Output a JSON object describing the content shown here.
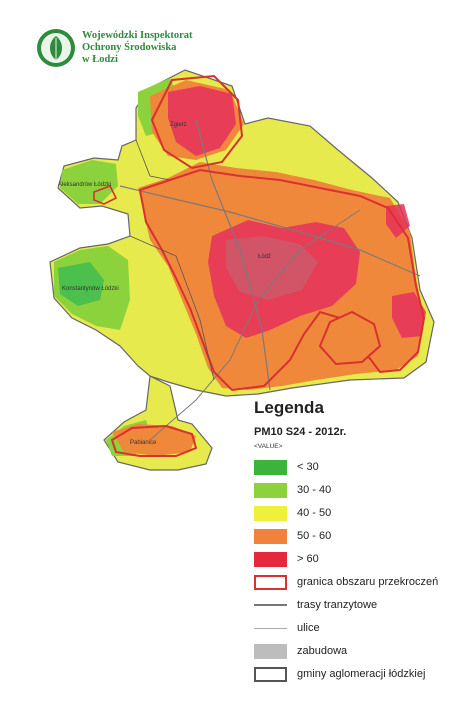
{
  "header": {
    "org_line1": "Wojewódzki Inspektorat",
    "org_line2": "Ochrony Środowiska",
    "org_line3": "w Łodzi"
  },
  "map": {
    "labels": {
      "zgierz": "Zgierz",
      "aleksandrow": "Aleksandrów Łódzki",
      "konstantynow": "Konstantynów Łódzki",
      "lodz": "Łódź",
      "pabianice": "Pabianice"
    }
  },
  "legend": {
    "title": "Legenda",
    "subtitle": "PM10 S24 - 2012r.",
    "value_label": "<VALUE>",
    "classes": [
      {
        "label": "< 30",
        "color": "#3cb43c"
      },
      {
        "label": "30 - 40",
        "color": "#8cd23c"
      },
      {
        "label": "40 - 50",
        "color": "#eef03c"
      },
      {
        "label": "50 - 60",
        "color": "#f0823c"
      },
      {
        "label": "> 60",
        "color": "#e6283c"
      }
    ],
    "exceedance_boundary": "granica obszaru przekroczeń",
    "transit_routes": "trasy tranzytowe",
    "streets": "ulice",
    "built_up": "zabudowa",
    "municipalities": "gminy aglomeracji łódzkiej"
  },
  "colors": {
    "green": "#3cb43c",
    "light_green": "#8cd23c",
    "yellow": "#eef03c",
    "orange": "#f0823c",
    "red": "#e6283c",
    "boundary_red": "#d93030",
    "org_green": "#2e8a3c"
  }
}
